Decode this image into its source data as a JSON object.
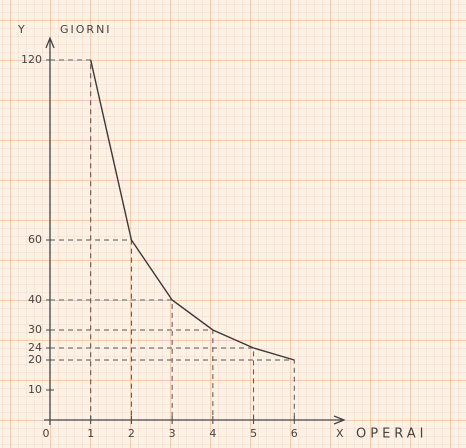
{
  "chart_data": {
    "type": "line",
    "x": [
      1,
      2,
      3,
      4,
      5,
      6
    ],
    "values": [
      120,
      60,
      40,
      30,
      24,
      20
    ],
    "color": "#3a3a3a",
    "xlim": [
      0,
      7
    ],
    "ylim": [
      0,
      125
    ],
    "xticks": [
      0,
      1,
      2,
      3,
      4,
      5,
      6
    ],
    "yticks": [
      10,
      20,
      24,
      30,
      40,
      60,
      120
    ],
    "x_axis_letter": "X",
    "x_label": "OPERAI",
    "y_axis_letter": "Y",
    "y_label": "GIORNI"
  }
}
